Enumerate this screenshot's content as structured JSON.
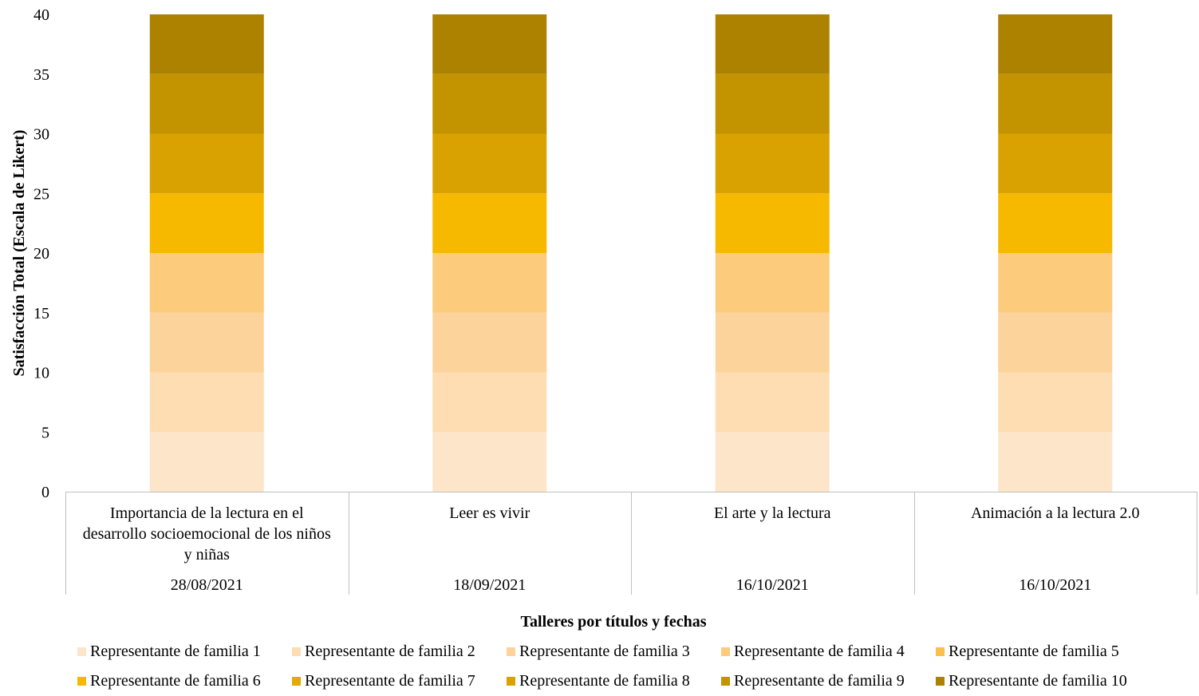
{
  "chart_data": {
    "type": "bar",
    "stacked": true,
    "ylabel": "Satisfacción  Total (Escala de Likert)",
    "xlabel": "Talleres por títulos y fechas",
    "ylim": [
      0,
      40
    ],
    "yticks": [
      0,
      5,
      10,
      15,
      20,
      25,
      30,
      35,
      40
    ],
    "yticks_text": [
      "0",
      "5",
      "10",
      "15",
      "20",
      "25",
      "30",
      "35",
      "40"
    ],
    "grid": false,
    "legend_position": "bottom",
    "categories": [
      {
        "title": "Importancia de la lectura en el desarrollo socioemocional de los niños y niñas",
        "title_lines": [
          "Importancia de la lectura en el",
          "desarrollo socioemocional de los niños",
          "y niñas"
        ],
        "date": "28/08/2021"
      },
      {
        "title": "Leer es vivir",
        "title_lines": [
          "Leer es vivir"
        ],
        "date": "18/09/2021"
      },
      {
        "title": "El arte y la lectura",
        "title_lines": [
          "El arte y la lectura"
        ],
        "date": "16/10/2021"
      },
      {
        "title": "Animación a la lectura 2.0",
        "title_lines": [
          "Animación a la lectura 2.0"
        ],
        "date": "16/10/2021"
      }
    ],
    "series": [
      {
        "name": "Representante de familia 1",
        "color": "#FDE5C9",
        "values": [
          5,
          5,
          5,
          5
        ]
      },
      {
        "name": "Representante de familia 2",
        "color": "#FDDDB1",
        "values": [
          5,
          5,
          5,
          5
        ]
      },
      {
        "name": "Representante de familia 3",
        "color": "#FCD49B",
        "values": [
          5,
          5,
          5,
          5
        ]
      },
      {
        "name": "Representante de familia 4",
        "color": "#FCCB7B",
        "values": [
          0,
          0,
          0,
          0
        ]
      },
      {
        "name": "Representante de familia 5",
        "color": "#FBC04A",
        "values": [
          0,
          0,
          0,
          0
        ]
      },
      {
        "name": "Representante de familia 6",
        "color": "#FCCB7B",
        "values": [
          5,
          5,
          5,
          5
        ]
      },
      {
        "name": "Representante de familia 7",
        "color": "#F6B900",
        "values": [
          5,
          5,
          5,
          5
        ]
      },
      {
        "name": "Representante de familia 8",
        "color": "#D9A200",
        "values": [
          5,
          5,
          5,
          5
        ]
      },
      {
        "name": "Representante de familia 9",
        "color": "#C39300",
        "values": [
          5,
          5,
          5,
          5
        ]
      },
      {
        "name": "Representante de familia 10",
        "color": "#AD8200",
        "values": [
          5,
          5,
          5,
          5
        ]
      }
    ],
    "legend_colors": [
      "#FDE5C9",
      "#FDDDB1",
      "#FCD49B",
      "#FCCB7B",
      "#FBC04A",
      "#F6B900",
      "#E3AA00",
      "#D9A200",
      "#C39300",
      "#AD8200"
    ]
  }
}
